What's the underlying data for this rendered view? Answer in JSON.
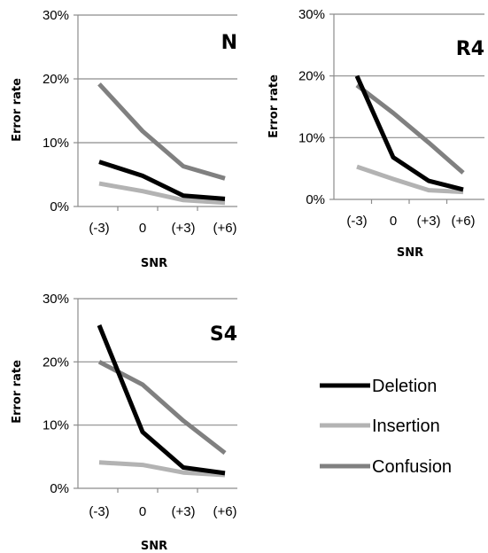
{
  "legend": [
    {
      "name": "Deletion",
      "color": "#000000"
    },
    {
      "name": "Insertion",
      "color": "#b3b3b3"
    },
    {
      "name": "Confusion",
      "color": "#808080"
    }
  ],
  "chart_data": [
    {
      "type": "line",
      "title": "N",
      "categories": [
        "(-3)",
        "0",
        "(+3)",
        "(+6)"
      ],
      "xlabel": "SNR",
      "ylabel": "Error rate",
      "yticks": [
        "0%",
        "10%",
        "20%",
        "30%"
      ],
      "ylim": [
        0,
        30
      ],
      "grid": true,
      "series": [
        {
          "name": "Deletion",
          "values": [
            7.0,
            4.8,
            1.7,
            1.2
          ]
        },
        {
          "name": "Insertion",
          "values": [
            3.6,
            2.4,
            1.0,
            0.6
          ]
        },
        {
          "name": "Confusion",
          "values": [
            19.2,
            11.8,
            6.3,
            4.4
          ]
        }
      ]
    },
    {
      "type": "line",
      "title": "R4",
      "categories": [
        "(-3)",
        "0",
        "(+3)",
        "(+6)"
      ],
      "xlabel": "SNR",
      "ylabel": "Error rate",
      "yticks": [
        "0%",
        "10%",
        "20%",
        "30%"
      ],
      "ylim": [
        0,
        30
      ],
      "grid": true,
      "series": [
        {
          "name": "Deletion",
          "values": [
            20.0,
            6.8,
            3.0,
            1.6
          ]
        },
        {
          "name": "Insertion",
          "values": [
            5.3,
            3.3,
            1.5,
            1.2
          ]
        },
        {
          "name": "Confusion",
          "values": [
            18.5,
            14.0,
            9.2,
            4.3
          ]
        }
      ]
    },
    {
      "type": "line",
      "title": "S4",
      "categories": [
        "(-3)",
        "0",
        "(+3)",
        "(+6)"
      ],
      "xlabel": "SNR",
      "ylabel": "Error rate",
      "yticks": [
        "0%",
        "10%",
        "20%",
        "30%"
      ],
      "ylim": [
        0,
        30
      ],
      "grid": true,
      "series": [
        {
          "name": "Deletion",
          "values": [
            25.8,
            8.9,
            3.3,
            2.4
          ]
        },
        {
          "name": "Insertion",
          "values": [
            4.1,
            3.7,
            2.5,
            2.1
          ]
        },
        {
          "name": "Confusion",
          "values": [
            20.0,
            16.4,
            10.7,
            5.6
          ]
        }
      ]
    }
  ]
}
